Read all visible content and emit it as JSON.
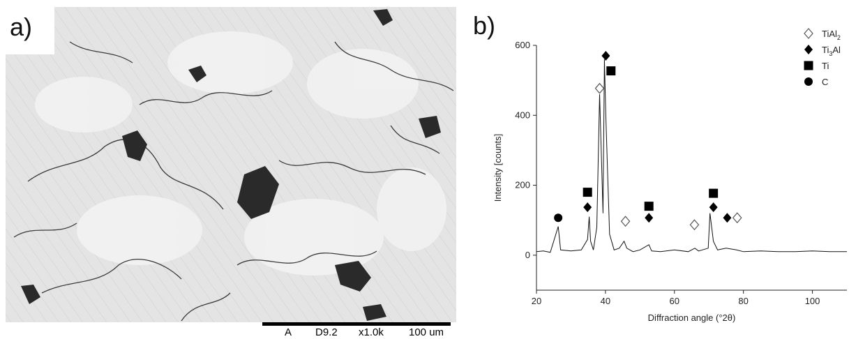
{
  "panel_a": {
    "label": "a)",
    "scalebar": {
      "mode": "A",
      "working_distance": "D9.2",
      "magnification": "x1.0k",
      "scale": "100 um"
    }
  },
  "panel_b": {
    "label": "b)"
  },
  "chart_data": {
    "type": "line",
    "title": "",
    "xlabel": "Diffraction angle (°2θ)",
    "ylabel": "Intensity [counts]",
    "xlim": [
      20,
      110
    ],
    "ylim": [
      -100,
      600
    ],
    "xticks": [
      20,
      40,
      60,
      80,
      100
    ],
    "yticks": [
      0,
      200,
      400,
      600
    ],
    "grid": false,
    "series": [
      {
        "x": [
          20,
          22,
          24,
          26.3,
          27,
          30,
          33,
          34.8,
          35.3,
          35.7,
          36.5,
          37.5,
          38.3,
          38.9,
          39.3,
          39.7,
          40.1,
          40.6,
          41.2,
          42.5,
          44,
          45.4,
          46.2,
          48,
          50,
          52.6,
          53.4,
          56,
          60,
          64,
          65.9,
          67,
          69.8,
          70.3,
          71.3,
          72.5,
          75,
          78,
          80,
          85,
          90,
          95,
          100,
          105,
          110
        ],
        "y": [
          10,
          12,
          8,
          82,
          15,
          12,
          15,
          45,
          110,
          40,
          15,
          80,
          460,
          260,
          120,
          560,
          400,
          240,
          60,
          15,
          20,
          40,
          20,
          10,
          15,
          30,
          12,
          10,
          15,
          10,
          20,
          12,
          20,
          120,
          40,
          15,
          20,
          15,
          10,
          12,
          10,
          10,
          12,
          10,
          10
        ]
      }
    ],
    "markers": [
      {
        "phase": "C",
        "x": 26.3,
        "y": 107
      },
      {
        "phase": "Ti3Al",
        "x": 34.8,
        "y": 137
      },
      {
        "phase": "Ti",
        "x": 34.8,
        "y": 180
      },
      {
        "phase": "TiAl2",
        "x": 38.3,
        "y": 477
      },
      {
        "phase": "Ti3Al",
        "x": 40.1,
        "y": 570
      },
      {
        "phase": "Ti",
        "x": 41.6,
        "y": 527
      },
      {
        "phase": "TiAl2",
        "x": 45.8,
        "y": 97
      },
      {
        "phase": "Ti3Al",
        "x": 52.6,
        "y": 107
      },
      {
        "phase": "Ti",
        "x": 52.6,
        "y": 140
      },
      {
        "phase": "TiAl2",
        "x": 65.8,
        "y": 87
      },
      {
        "phase": "Ti3Al",
        "x": 71.3,
        "y": 137
      },
      {
        "phase": "Ti",
        "x": 71.3,
        "y": 177
      },
      {
        "phase": "Ti3Al",
        "x": 75.3,
        "y": 107
      },
      {
        "phase": "TiAl2",
        "x": 78.2,
        "y": 107
      }
    ],
    "legend": {
      "placement": "top-right",
      "entries": [
        {
          "symbol": "open-diamond",
          "base": "TiAl",
          "sub": "2"
        },
        {
          "symbol": "filled-diamond",
          "base": "Ti",
          "sub": "3",
          "tail": "Al"
        },
        {
          "symbol": "filled-square",
          "base": "Ti"
        },
        {
          "symbol": "filled-circle",
          "base": "C"
        }
      ]
    }
  }
}
